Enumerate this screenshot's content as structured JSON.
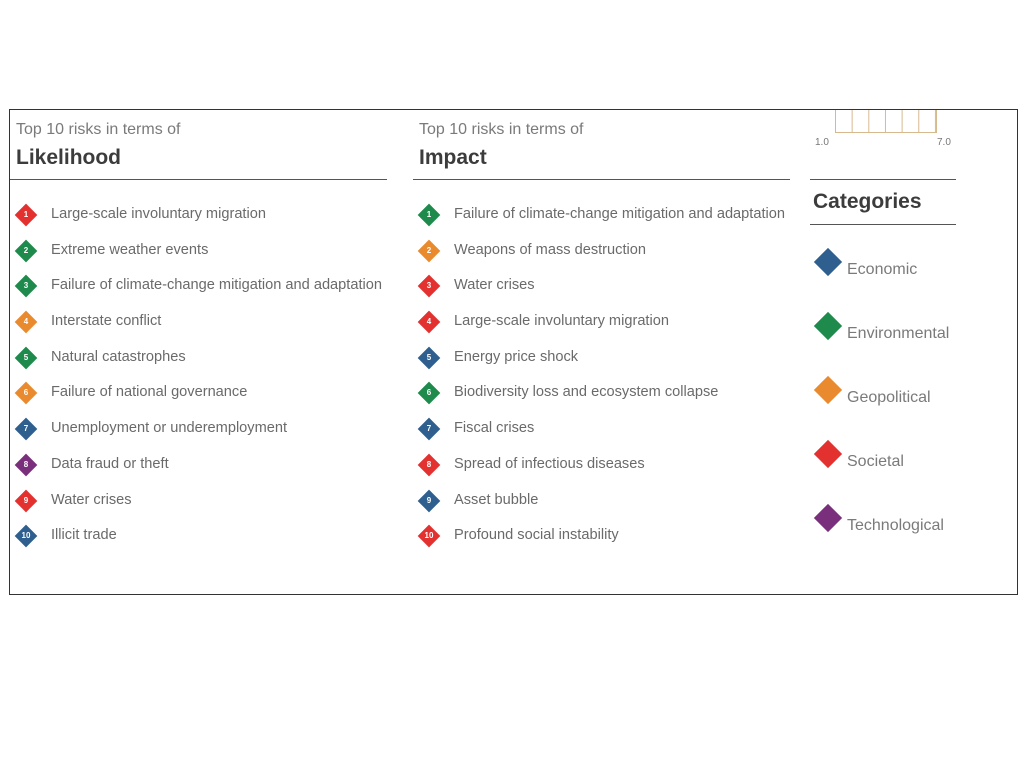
{
  "colors": {
    "economic": "#2f5f8f",
    "environmental": "#1e8a4c",
    "geopolitical": "#ea8a2e",
    "societal": "#e2312f",
    "technological": "#7a2f7c"
  },
  "likelihood": {
    "subtitle": "Top 10 risks in terms of",
    "title": "Likelihood",
    "items": [
      {
        "num": "1",
        "label": "Large-scale involuntary migration",
        "category": "societal"
      },
      {
        "num": "2",
        "label": "Extreme weather events",
        "category": "environmental"
      },
      {
        "num": "3",
        "label": "Failure of climate-change mitigation and adaptation",
        "category": "environmental"
      },
      {
        "num": "4",
        "label": "Interstate conflict",
        "category": "geopolitical"
      },
      {
        "num": "5",
        "label": "Natural catastrophes",
        "category": "environmental"
      },
      {
        "num": "6",
        "label": "Failure of national governance",
        "category": "geopolitical"
      },
      {
        "num": "7",
        "label": "Unemployment or underemployment",
        "category": "economic"
      },
      {
        "num": "8",
        "label": "Data fraud or theft",
        "category": "technological"
      },
      {
        "num": "9",
        "label": "Water crises",
        "category": "societal"
      },
      {
        "num": "10",
        "label": "Illicit trade",
        "category": "economic"
      }
    ]
  },
  "impact": {
    "subtitle": "Top 10 risks in terms of",
    "title": "Impact",
    "items": [
      {
        "num": "1",
        "label": "Failure of climate-change mitigation and adaptation",
        "category": "environmental"
      },
      {
        "num": "2",
        "label": "Weapons of mass destruction",
        "category": "geopolitical"
      },
      {
        "num": "3",
        "label": "Water crises",
        "category": "societal"
      },
      {
        "num": "4",
        "label": "Large-scale involuntary migration",
        "category": "societal"
      },
      {
        "num": "5",
        "label": "Energy price shock",
        "category": "economic"
      },
      {
        "num": "6",
        "label": "Biodiversity loss and ecosystem collapse",
        "category": "environmental"
      },
      {
        "num": "7",
        "label": "Fiscal crises",
        "category": "economic"
      },
      {
        "num": "8",
        "label": "Spread of infectious diseases",
        "category": "societal"
      },
      {
        "num": "9",
        "label": "Asset bubble",
        "category": "economic"
      },
      {
        "num": "10",
        "label": "Profound social instability",
        "category": "societal"
      }
    ]
  },
  "legend": {
    "scale_min": "1.0",
    "scale_max": "7.0",
    "title": "Categories",
    "categories": [
      {
        "label": "Economic",
        "category": "economic"
      },
      {
        "label": "Environmental",
        "category": "environmental"
      },
      {
        "label": "Geopolitical",
        "category": "geopolitical"
      },
      {
        "label": "Societal",
        "category": "societal"
      },
      {
        "label": "Technological",
        "category": "technological"
      }
    ]
  }
}
